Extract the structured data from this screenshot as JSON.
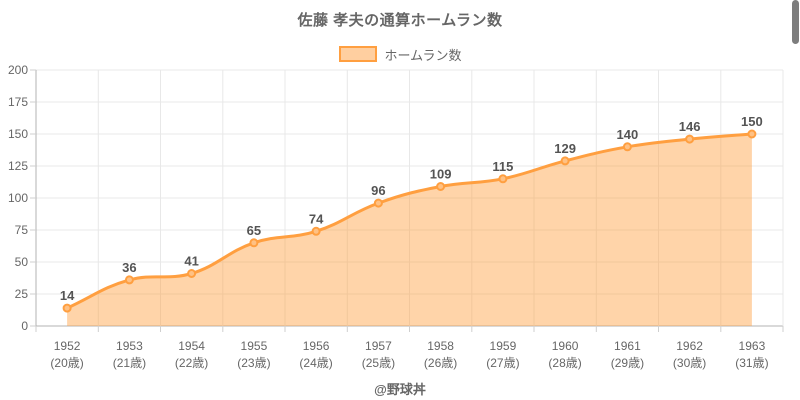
{
  "header": {
    "title": "佐藤 孝夫の通算ホームラン数"
  },
  "legend": {
    "label": "ホームラン数"
  },
  "footer": {
    "credit": "@野球丼"
  },
  "chart_data": {
    "type": "area",
    "title": "佐藤 孝夫の通算ホームラン数",
    "categories": [
      "1952",
      "1953",
      "1954",
      "1955",
      "1956",
      "1957",
      "1958",
      "1959",
      "1960",
      "1961",
      "1962",
      "1963"
    ],
    "categories_sub": [
      "(20歳)",
      "(21歳)",
      "(22歳)",
      "(23歳)",
      "(24歳)",
      "(25歳)",
      "(26歳)",
      "(27歳)",
      "(28歳)",
      "(29歳)",
      "(30歳)",
      "(31歳)"
    ],
    "series": [
      {
        "name": "ホームラン数",
        "values": [
          14,
          36,
          41,
          65,
          74,
          96,
          109,
          115,
          129,
          140,
          146,
          150
        ]
      }
    ],
    "xlabel": "",
    "ylabel": "",
    "ylim": [
      0,
      200
    ],
    "yticks": [
      0,
      25,
      50,
      75,
      100,
      125,
      150,
      175,
      200
    ],
    "grid": true,
    "legend_position": "top",
    "line_tension": 0.4,
    "colors": {
      "line": "#ff9f40",
      "area_fill": "#ff9f40",
      "area_opacity": 0.45,
      "marker_fill": "#ffc184",
      "grid": "#e8e8e8",
      "axis": "#b3b3b3",
      "tick_mark": "#cfcfcf",
      "tick_label": "#666666",
      "data_label": "#545454",
      "title": "#666666"
    }
  }
}
